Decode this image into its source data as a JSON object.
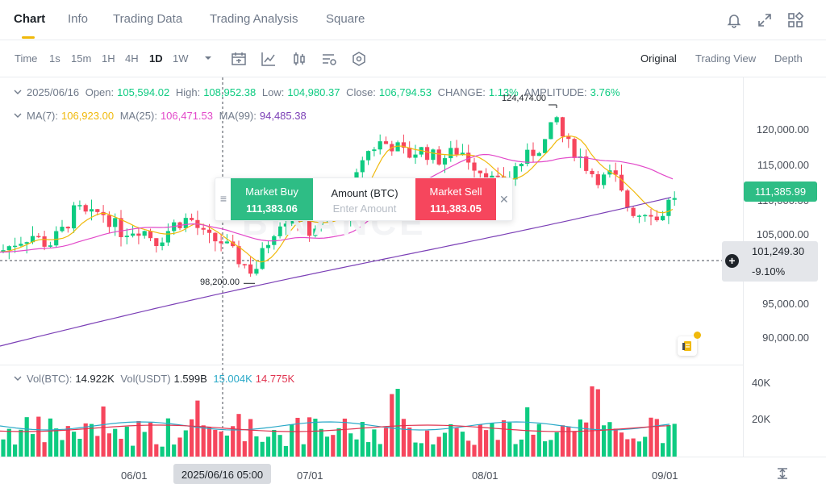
{
  "nav": {
    "tabs": [
      "Chart",
      "Info",
      "Trading Data",
      "Trading Analysis",
      "Square"
    ],
    "active": "Chart"
  },
  "toolbar": {
    "intervals": [
      "Time",
      "1s",
      "15m",
      "1H",
      "4H",
      "1D",
      "1W"
    ],
    "active_interval": "1D",
    "views": [
      "Original",
      "Trading View",
      "Depth"
    ],
    "active_view": "Original"
  },
  "ohlc": {
    "date": "2025/06/16",
    "open_label": "Open:",
    "open": "105,594.02",
    "high_label": "High:",
    "high": "108,952.38",
    "low_label": "Low:",
    "low": "104,980.37",
    "close_label": "Close:",
    "close": "106,794.53",
    "change_label": "CHANGE:",
    "change": "1.13%",
    "amplitude_label": "AMPLITUDE:",
    "amplitude": "3.76%"
  },
  "ma": {
    "ma7_label": "MA(7):",
    "ma7": "106,923.00",
    "ma25_label": "MA(25):",
    "ma25": "106,471.53",
    "ma99_label": "MA(99):",
    "ma99": "94,485.38"
  },
  "price_axis": [
    "120,000.00",
    "115,000.00",
    "110,000.00",
    "105,000.00",
    "95,000.00",
    "90,000.00"
  ],
  "current_price": "111,385.99",
  "crosshair": {
    "price": "101,249.30",
    "pct": "-9.10%",
    "date": "2025/06/16 05:00"
  },
  "markers": {
    "high": "124,474.00",
    "low": "98,200.00"
  },
  "trade": {
    "buy_label": "Market Buy",
    "buy_price": "111,383.06",
    "amount_label": "Amount (BTC)",
    "amount_placeholder": "Enter Amount",
    "sell_label": "Market Sell",
    "sell_price": "111,383.05"
  },
  "volume": {
    "btc_label": "Vol(BTC):",
    "btc": "14.922K",
    "usdt_label": "Vol(USDT)",
    "usdt": "1.599B",
    "ma_a": "15.004K",
    "ma_b": "14.775K",
    "axis": [
      "40K",
      "20K"
    ]
  },
  "dates": [
    "06/01",
    "07/01",
    "08/01",
    "09/01"
  ],
  "watermark": "BINANCE",
  "colors": {
    "up": "#0ecb81",
    "down": "#f6465d",
    "accent": "#f0b90b"
  }
}
